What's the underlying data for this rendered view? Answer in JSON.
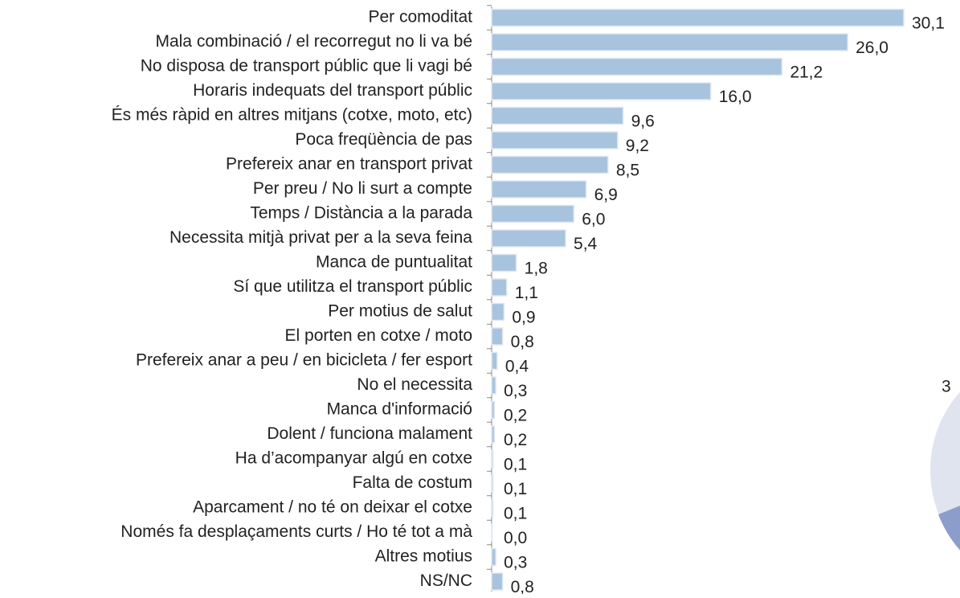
{
  "chart_data": {
    "type": "bar",
    "orientation": "horizontal",
    "categories": [
      "Per comoditat",
      "Mala combinació / el recorregut no li va bé",
      "No disposa de transport públic que li vagi bé",
      "Horaris indequats del transport públic",
      "És més ràpid en altres mitjans (cotxe, moto, etc)",
      "Poca freqüència de pas",
      "Prefereix anar en transport privat",
      "Per preu / No li surt a compte",
      "Temps / Distància a la parada",
      "Necessita mitjà privat per a la seva feina",
      "Manca de puntualitat",
      "Sí que utilitza el transport públic",
      "Per motius de salut",
      "El porten en cotxe / moto",
      "Prefereix anar a peu / en bicicleta / fer esport",
      "No el necessita",
      "Manca d'informació",
      "Dolent / funciona malament",
      "Ha d’acompanyar algú en cotxe",
      "Falta de costum",
      "Aparcament / no té on deixar el cotxe",
      "Només fa desplaçaments curts / Ho té tot a mà",
      "Altres motius",
      "NS/NC"
    ],
    "values": [
      30.1,
      26.0,
      21.2,
      16.0,
      9.6,
      9.2,
      8.5,
      6.9,
      6.0,
      5.4,
      1.8,
      1.1,
      0.9,
      0.8,
      0.4,
      0.3,
      0.2,
      0.2,
      0.1,
      0.1,
      0.1,
      0.0,
      0.3,
      0.8
    ],
    "value_labels": [
      "30,1",
      "26,0",
      "21,2",
      "16,0",
      "9,6",
      "9,2",
      "8,5",
      "6,9",
      "6,0",
      "5,4",
      "1,8",
      "1,1",
      "0,9",
      "0,8",
      "0,4",
      "0,3",
      "0,2",
      "0,2",
      "0,1",
      "0,1",
      "0,1",
      "0,0",
      "0,3",
      "0,8"
    ],
    "color": "#a8c3dd",
    "xlim": [
      0,
      30.1
    ]
  },
  "pie_fragment": {
    "label": "3"
  }
}
